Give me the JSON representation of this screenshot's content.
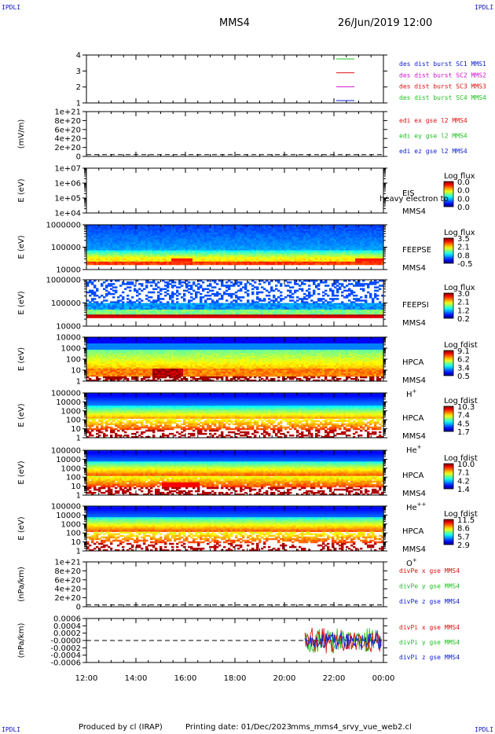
{
  "corner_tag": "IPDLI",
  "header": {
    "mission": "MMS4",
    "datetime": "26/Jun/2019 12:00"
  },
  "footer": {
    "credit": "Produced by cl (IRAP)",
    "printing": "Printing date: 01/Dec/2023",
    "file": "mms_mms4_srvy_vue_web2.cl"
  },
  "x_ticks": [
    "12:00",
    "14:00",
    "16:00",
    "18:00",
    "20:00",
    "22:00",
    "00:00"
  ],
  "colors": {
    "blue": "#1020d0",
    "green": "#20c020",
    "red": "#e01010",
    "magenta": "#d010d0"
  },
  "chart_data": [
    {
      "type": "line",
      "id": "dist",
      "yticks": [
        "4",
        "3",
        "2",
        "1"
      ],
      "ylabel": "",
      "series": [
        {
          "name": "des dist burst SC1 MMS1",
          "color": "blue"
        },
        {
          "name": "des dist burst SC2 MMS2",
          "color": "magenta"
        },
        {
          "name": "des dist burst SC3 MMS3",
          "color": "red"
        },
        {
          "name": "des dist burst SC4 MMS4",
          "color": "green"
        }
      ],
      "legend_marks": [
        "green",
        "red",
        "magenta",
        "blue"
      ]
    },
    {
      "type": "line",
      "id": "edi",
      "ylabel": "(mV/m)",
      "yticks": [
        "1e+21",
        "8e+20",
        "6e+20",
        "4e+20",
        "2e+20",
        "0"
      ],
      "series": [
        {
          "name": "edi ex gse l2 MMS4",
          "color": "red"
        },
        {
          "name": "edi ey gse l2 MMS4",
          "color": "green"
        },
        {
          "name": "edi ez gse l2 MMS4",
          "color": "blue"
        }
      ]
    },
    {
      "type": "heatmap",
      "id": "eis",
      "ylabel": "E (eV)",
      "yticks": [
        "1e+07",
        "1e+06",
        "1e+05",
        "1e+04"
      ],
      "label1": "EIS",
      "label2": "MMS4",
      "extra": "heavy electron to",
      "cbar_title": "Log flux",
      "cbar_ticks": [
        "0.0",
        "0.0",
        "0.0",
        "0.0"
      ],
      "profile": "none"
    },
    {
      "type": "heatmap",
      "id": "feepse",
      "ylabel": "E (eV)",
      "yticks": [
        "1000000",
        "100000",
        "10000"
      ],
      "label1": "FEEPSE",
      "label2": "MMS4",
      "cbar_title": "Log flux",
      "cbar_ticks": [
        "3.5",
        "2.1",
        "0.8",
        "-0.5"
      ],
      "profile": "feeps_e"
    },
    {
      "type": "heatmap",
      "id": "feepsi",
      "ylabel": "E (eV)",
      "yticks": [
        "1000000",
        "100000",
        "10000"
      ],
      "label1": "FEEPSI",
      "label2": "MMS4",
      "cbar_title": "Log flux",
      "cbar_ticks": [
        "3.0",
        "2.1",
        "1.2",
        "0.2"
      ],
      "profile": "feeps_i"
    },
    {
      "type": "heatmap",
      "id": "hpca_h",
      "ylabel": "E (eV)",
      "yticks": [
        "10000",
        "1000",
        "100",
        "10",
        "1"
      ],
      "label1": "HPCA",
      "label2": "MMS4",
      "species": "H",
      "charge": "+",
      "cbar_title": "Log fdist",
      "cbar_ticks": [
        "9.1",
        "6.2",
        "3.4",
        "0.5"
      ],
      "profile": "hpca_h"
    },
    {
      "type": "heatmap",
      "id": "hpca_he",
      "ylabel": "E (eV)",
      "yticks": [
        "100000",
        "10000",
        "1000",
        "100",
        "10",
        "1"
      ],
      "label1": "HPCA",
      "label2": "MMS4",
      "species": "He",
      "charge": "+",
      "cbar_title": "Log fdist",
      "cbar_ticks": [
        "10.3",
        "7.4",
        "4.5",
        "1.7"
      ],
      "profile": "hpca_he"
    },
    {
      "type": "heatmap",
      "id": "hpca_he2",
      "ylabel": "E (eV)",
      "yticks": [
        "100000",
        "10000",
        "1000",
        "100",
        "10",
        "1"
      ],
      "label1": "HPCA",
      "label2": "MMS4",
      "species": "He",
      "charge": "++",
      "cbar_title": "Log fdist",
      "cbar_ticks": [
        "10.0",
        "7.1",
        "4.2",
        "1.4"
      ],
      "profile": "hpca_he2"
    },
    {
      "type": "heatmap",
      "id": "hpca_o",
      "ylabel": "E (eV)",
      "yticks": [
        "100000",
        "10000",
        "1000",
        "100",
        "10",
        "1"
      ],
      "label1": "HPCA",
      "label2": "MMS4",
      "species": "O",
      "charge": "+",
      "cbar_title": "Log fdist",
      "cbar_ticks": [
        "11.5",
        "8.6",
        "5.7",
        "2.9"
      ],
      "profile": "hpca_o"
    },
    {
      "type": "line",
      "id": "divpe",
      "ylabel": "(nPa/km)",
      "yticks": [
        "1e+21",
        "8e+20",
        "6e+20",
        "4e+20",
        "2e+20",
        "0"
      ],
      "series": [
        {
          "name": "divPe x gse MMS4",
          "color": "red"
        },
        {
          "name": "divPe y gse MMS4",
          "color": "green"
        },
        {
          "name": "divPe z gse MMS4",
          "color": "blue"
        }
      ]
    },
    {
      "type": "line",
      "id": "divpi",
      "ylabel": "(nPa/km)",
      "yticks": [
        "0.0006",
        "0.0004",
        "0.0002",
        "-0.0000",
        "-0.0002",
        "-0.0004",
        "-0.0006"
      ],
      "data_start": "20:50",
      "data_end": "23:55",
      "series": [
        {
          "name": "divPi x gse MMS4",
          "color": "red"
        },
        {
          "name": "divPi y gse MMS4",
          "color": "green"
        },
        {
          "name": "divPi z gse MMS4",
          "color": "blue"
        }
      ]
    }
  ]
}
